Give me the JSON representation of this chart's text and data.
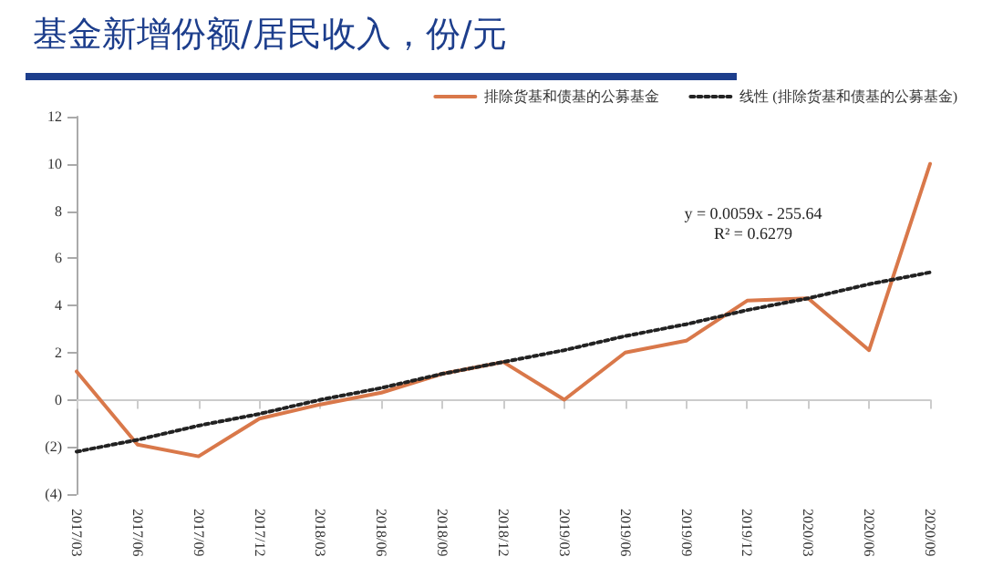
{
  "chart_data": {
    "type": "line",
    "title": "基金新增份额/居民收入，份/元",
    "categories": [
      "2017/03",
      "2017/06",
      "2017/09",
      "2017/12",
      "2018/03",
      "2018/06",
      "2018/09",
      "2018/12",
      "2019/03",
      "2019/06",
      "2019/09",
      "2019/12",
      "2020/03",
      "2020/06",
      "2020/09"
    ],
    "series": [
      {
        "name": "排除货基和债基的公募基金",
        "color": "#d9784a",
        "line_style": "solid",
        "values": [
          1.2,
          -1.9,
          -2.4,
          -0.8,
          -0.2,
          0.3,
          1.1,
          1.6,
          0.0,
          2.0,
          2.5,
          4.2,
          4.3,
          2.1,
          10.0
        ]
      },
      {
        "name": "线性 (排除货基和债基的公募基金)",
        "color": "#222222",
        "line_style": "dotted",
        "values": [
          -2.2,
          -1.7,
          -1.1,
          -0.6,
          0.0,
          0.5,
          1.1,
          1.6,
          2.1,
          2.7,
          3.2,
          3.8,
          4.3,
          4.9,
          5.4
        ]
      }
    ],
    "annotations": [
      "y = 0.0059x - 255.64",
      "R² = 0.6279"
    ],
    "ylim": [
      -4,
      12
    ],
    "yticks": [
      {
        "value": -4,
        "label": "(4)"
      },
      {
        "value": -2,
        "label": "(2)"
      },
      0,
      2,
      4,
      6,
      8,
      10,
      12
    ],
    "legend": "top right",
    "marker": "none"
  }
}
